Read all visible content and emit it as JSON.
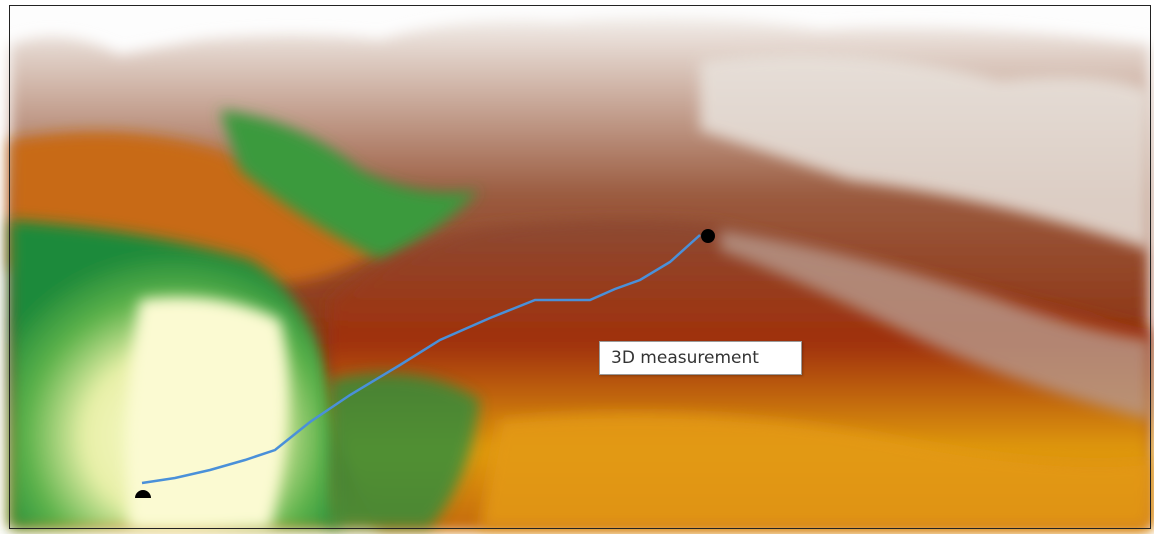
{
  "tooltip": {
    "label": "3D measurement"
  }
}
